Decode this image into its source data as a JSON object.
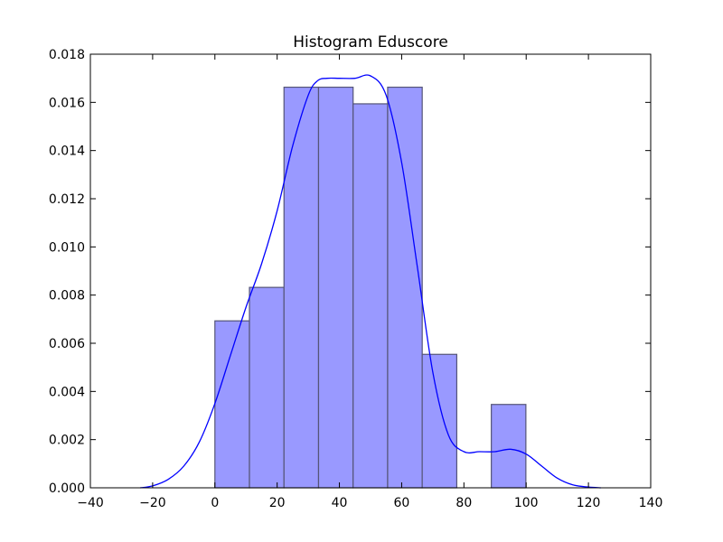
{
  "chart_data": {
    "type": "bar",
    "title": "Histogram Eduscore",
    "xlabel": "",
    "ylabel": "",
    "xlim": [
      -40,
      140
    ],
    "ylim": [
      0,
      0.018
    ],
    "grid": false,
    "x_ticks": [
      -40,
      -20,
      0,
      20,
      40,
      60,
      80,
      100,
      120,
      140
    ],
    "x_tick_labels": [
      "−40",
      "−20",
      "0",
      "20",
      "40",
      "60",
      "80",
      "100",
      "120",
      "140"
    ],
    "y_ticks": [
      0,
      0.002,
      0.004,
      0.006,
      0.008,
      0.01,
      0.012,
      0.014,
      0.016,
      0.018
    ],
    "y_tick_labels": [
      "0.000",
      "0.002",
      "0.004",
      "0.006",
      "0.008",
      "0.010",
      "0.012",
      "0.014",
      "0.016",
      "0.018"
    ],
    "bins": [
      {
        "x0": 0,
        "x1": 11.1,
        "density": 0.00693
      },
      {
        "x0": 11.1,
        "x1": 22.2,
        "density": 0.00832
      },
      {
        "x0": 22.2,
        "x1": 33.3,
        "density": 0.01663
      },
      {
        "x0": 33.3,
        "x1": 44.4,
        "density": 0.01663
      },
      {
        "x0": 44.4,
        "x1": 55.5,
        "density": 0.01594
      },
      {
        "x0": 55.5,
        "x1": 66.6,
        "density": 0.01663
      },
      {
        "x0": 66.6,
        "x1": 77.7,
        "density": 0.00554
      },
      {
        "x0": 77.7,
        "x1": 88.8,
        "density": 0
      },
      {
        "x0": 88.8,
        "x1": 99.9,
        "density": 0.00346
      }
    ],
    "kde": {
      "x": [
        -24,
        -20,
        -15,
        -10,
        -5,
        0,
        5,
        10,
        15,
        20,
        25,
        30,
        33,
        36,
        40,
        45,
        50,
        55,
        60,
        65,
        70,
        75,
        80,
        85,
        90,
        95,
        100,
        105,
        110,
        115,
        120,
        124
      ],
      "y": [
        0.0,
        8e-05,
        0.00035,
        0.0009,
        0.0019,
        0.0035,
        0.0055,
        0.0075,
        0.0093,
        0.0115,
        0.0142,
        0.0163,
        0.0169,
        0.017,
        0.017,
        0.017,
        0.0171,
        0.0163,
        0.0135,
        0.0092,
        0.0048,
        0.0022,
        0.0015,
        0.0015,
        0.0015,
        0.0016,
        0.0014,
        0.0009,
        0.0004,
        0.00012,
        3e-05,
        0.0
      ]
    },
    "colors": {
      "bar_fill": "#9999ff",
      "bar_edge": "#555577",
      "kde_line": "#0000ff",
      "axis": "#000000"
    }
  }
}
